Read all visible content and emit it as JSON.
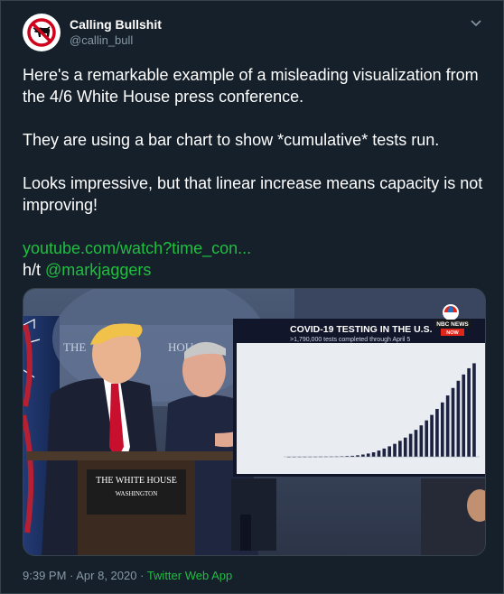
{
  "author": {
    "name": "Calling Bullshit",
    "handle": "@callin_bull",
    "avatar_icon": "no-bull-icon"
  },
  "tweet": {
    "paragraphs": [
      "Here's a remarkable example of a misleading visualization from the 4/6 White House press conference.",
      "They are using a bar chart to show *cumulative* tests run.",
      "Looks impressive, but that linear increase means capacity is not improving!"
    ],
    "link": "youtube.com/watch?time_con...",
    "ht_prefix": "h/t",
    "mention": "@markjaggers"
  },
  "media": {
    "podium_line1": "THE WHITE HOUSE",
    "podium_line2": "WASHINGTON",
    "wall_text": "THE",
    "wall_text2": "HOU",
    "nbc_logo": "NBC NEWS",
    "nbc_now": "NOW",
    "chart_title": "COVID-19 TESTING IN THE U.S.",
    "chart_subtitle": ">1,790,000 tests completed through April 5"
  },
  "footer": {
    "time": "9:39 PM",
    "sep1": " · ",
    "date": "Apr 8, 2020",
    "sep2": " · ",
    "source": "Twitter Web App"
  },
  "colors": {
    "background": "#15202b",
    "link": "#1fbf40",
    "muted": "#8899a6"
  },
  "chart_data": {
    "type": "bar",
    "title": "COVID-19 TESTING IN THE U.S.",
    "subtitle": ">1,790,000 tests completed through April 5",
    "values": [
      0.2,
      0.3,
      0.4,
      0.5,
      0.6,
      0.7,
      0.9,
      1.1,
      1.3,
      1.6,
      2,
      3,
      4,
      6,
      9,
      13,
      18,
      25,
      33,
      42,
      52,
      64,
      77,
      92,
      108,
      126,
      146,
      168,
      192,
      218,
      246,
      276,
      305,
      330,
      355,
      375
    ],
    "ylim": [
      0,
      420
    ]
  }
}
